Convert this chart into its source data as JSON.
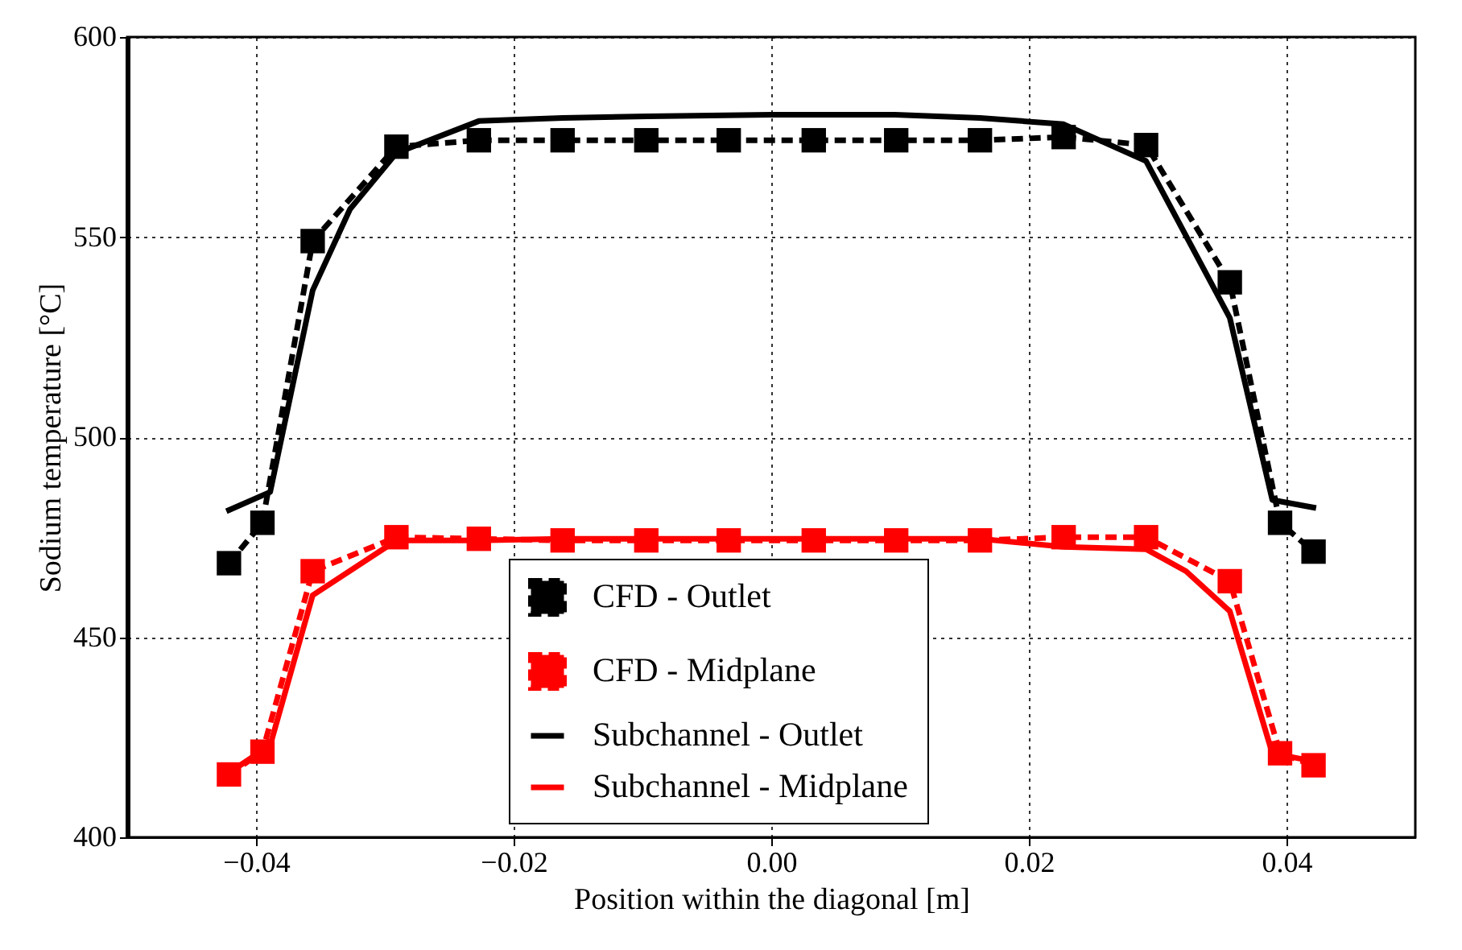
{
  "chart_data": {
    "type": "line",
    "xlabel": "Position within the diagonal [m]",
    "ylabel": "Sodium temperature [°C]",
    "xlim": [
      -0.05,
      0.05
    ],
    "xticks": [
      -0.04,
      -0.02,
      {
        "value": 0,
        "label": "0.00"
      },
      0.02,
      0.04
    ],
    "ylim": [
      400,
      600
    ],
    "yticks": [
      400,
      450,
      500,
      550,
      600
    ],
    "grid": true,
    "legend": "bottom",
    "series": [
      {
        "name": "CFD - Outlet",
        "color": "#000000",
        "line_style": "dashed",
        "marker": "square",
        "x": [
          -0.0421,
          -0.0395,
          -0.0356,
          -0.0291,
          -0.0227,
          -0.0162,
          -0.0097,
          -0.0033,
          0.0033,
          0.0097,
          0.0162,
          0.0227,
          0.0291,
          0.0356,
          0.0395,
          0.0421
        ],
        "values": [
          468.5,
          478.6,
          549,
          572.6,
          574.2,
          574.2,
          574.2,
          574.2,
          574.2,
          574.2,
          574.2,
          575,
          573,
          538.7,
          478.6,
          471.4
        ]
      },
      {
        "name": "CFD - Midplane",
        "color": "#ff0000",
        "line_style": "dashed",
        "marker": "square",
        "x": [
          -0.0421,
          -0.0395,
          -0.0356,
          -0.0291,
          -0.0227,
          -0.0162,
          -0.0097,
          -0.0033,
          0.0033,
          0.0097,
          0.0162,
          0.0227,
          0.0291,
          0.0356,
          0.0395,
          0.0421
        ],
        "values": [
          415.7,
          421.4,
          466.5,
          475,
          474.6,
          474.2,
          474.2,
          474.2,
          474.2,
          474.2,
          474.2,
          475,
          475,
          464,
          421,
          418
        ]
      },
      {
        "name": "Subchannel - Outlet",
        "color": "#000000",
        "line_style": "solid",
        "marker": "none",
        "x": [
          -0.0423,
          -0.0389,
          -0.0356,
          -0.0327,
          -0.0291,
          -0.0227,
          -0.0162,
          -0.0096,
          0,
          0.0096,
          0.0162,
          0.0227,
          0.0291,
          0.0356,
          0.0389,
          0.0423
        ],
        "values": [
          481.5,
          486.3,
          536.7,
          557,
          571,
          579,
          579.8,
          580.2,
          580.6,
          580.6,
          579.8,
          578.2,
          569,
          529.8,
          484.3,
          482.3
        ]
      },
      {
        "name": "Subchannel - Midplane",
        "color": "#ff0000",
        "line_style": "solid",
        "marker": "none",
        "x": [
          -0.0423,
          -0.0389,
          -0.0356,
          -0.0291,
          -0.0227,
          -0.0162,
          -0.0096,
          0,
          0.0096,
          0.0162,
          0.0227,
          0.0291,
          0.0322,
          0.0356,
          0.0389,
          0.0421
        ],
        "values": [
          415.7,
          423,
          460.5,
          474.2,
          474.2,
          474.6,
          474.6,
          474.6,
          474.6,
          474.6,
          472.6,
          472,
          466.5,
          456.5,
          421,
          419
        ]
      }
    ]
  }
}
